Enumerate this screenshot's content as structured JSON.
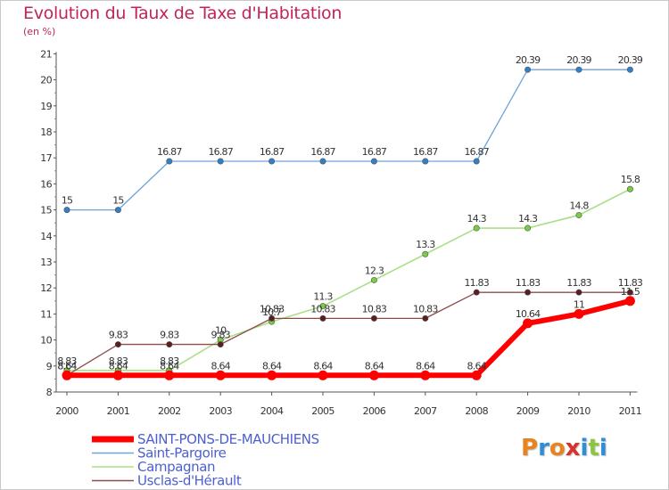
{
  "title": "Evolution du Taux de Taxe d'Habitation",
  "subtitle": "(en %)",
  "logo": {
    "text": "Proxiti",
    "colors": [
      "#e8831f",
      "#2f8ed6",
      "#e8831f",
      "#d8322b",
      "#2f8ed6",
      "#8cc63f",
      "#2f8ed6"
    ]
  },
  "chart_data": {
    "type": "line",
    "x": [
      "2000",
      "2001",
      "2002",
      "2003",
      "2004",
      "2005",
      "2006",
      "2007",
      "2008",
      "2009",
      "2010",
      "2011"
    ],
    "ylim": [
      8,
      21
    ],
    "yticks": [
      8,
      9,
      10,
      11,
      12,
      13,
      14,
      15,
      16,
      17,
      18,
      19,
      20,
      21
    ],
    "grid": false,
    "legend": "bottom-left",
    "series": [
      {
        "name": "Saint-Pargoire",
        "color": "#6fa3d9",
        "marker": "#2f80c8",
        "width": 1.3,
        "radius": 3.2,
        "values": [
          15,
          15,
          16.87,
          16.87,
          16.87,
          16.87,
          16.87,
          16.87,
          16.87,
          20.39,
          20.39,
          20.39
        ],
        "labels": [
          "15",
          "15",
          "16.87",
          "16.87",
          "16.87",
          "16.87",
          "16.87",
          "16.87",
          "16.87",
          "20.39",
          "20.39",
          "20.39"
        ]
      },
      {
        "name": "Campagnan",
        "color": "#a9df86",
        "marker": "#7acc41",
        "width": 1.6,
        "radius": 3.2,
        "values": [
          8.83,
          8.83,
          8.83,
          10,
          10.7,
          11.3,
          12.3,
          13.3,
          14.3,
          14.3,
          14.8,
          15.8
        ],
        "labels": [
          "8.83",
          "8.83",
          "8.83",
          "10",
          "10.7",
          "11.3",
          "12.3",
          "13.3",
          "14.3",
          "14.3",
          "14.8",
          "15.8"
        ]
      },
      {
        "name": "Usclas-d'Hérault",
        "color": "#8e4b4b",
        "marker": "#5a1e1e",
        "width": 1.3,
        "radius": 3.2,
        "values": [
          8.64,
          9.83,
          9.83,
          9.83,
          10.83,
          10.83,
          10.83,
          10.83,
          11.83,
          11.83,
          11.83,
          11.83
        ],
        "labels": [
          "8.64",
          "9.83",
          "9.83",
          "9.83",
          "10.83",
          "10.83",
          "10.83",
          "10.83",
          "11.83",
          "11.83",
          "11.83",
          "11.83"
        ]
      },
      {
        "name": "SAINT-PONS-DE-MAUCHIENS",
        "color": "#ff0000",
        "marker": "#ff0000",
        "width": 6,
        "radius": 5.5,
        "values": [
          8.64,
          8.64,
          8.64,
          8.64,
          8.64,
          8.64,
          8.64,
          8.64,
          8.64,
          10.64,
          11,
          11.5
        ],
        "labels": [
          "8.64",
          "8.64",
          "8.64",
          "8.64",
          "8.64",
          "8.64",
          "8.64",
          "8.64",
          "8.64",
          "10.64",
          "11",
          "11.5"
        ]
      }
    ],
    "legend_order": [
      "SAINT-PONS-DE-MAUCHIENS",
      "Saint-Pargoire",
      "Campagnan",
      "Usclas-d'Hérault"
    ]
  }
}
